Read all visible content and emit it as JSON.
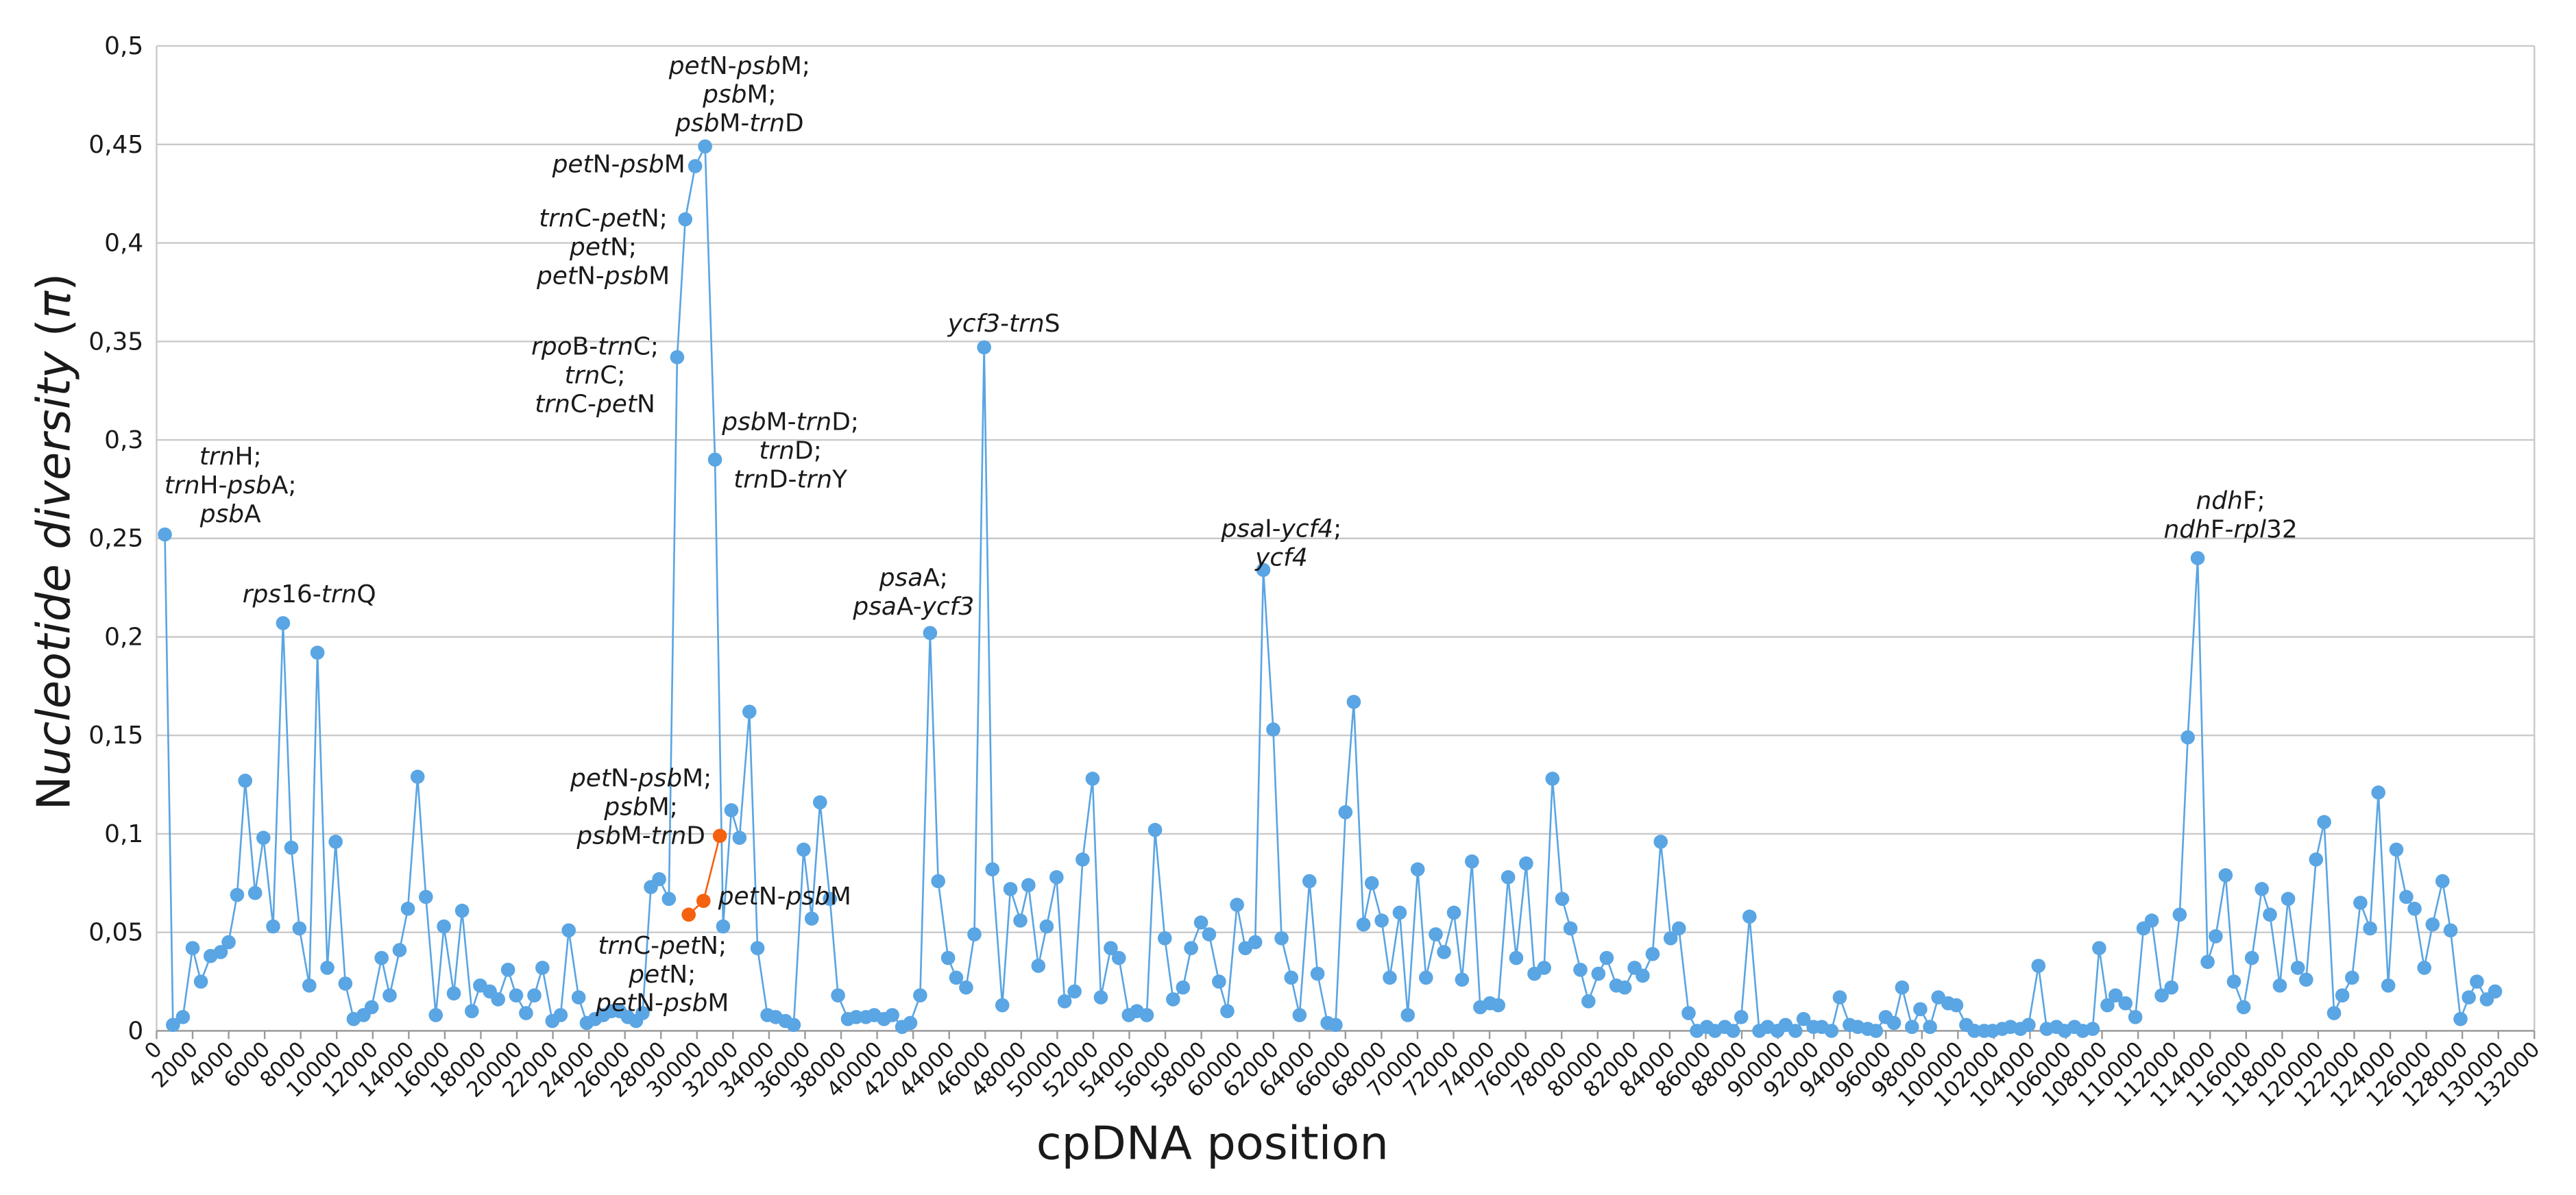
{
  "chart_data": {
    "type": "line",
    "x_label": "cpDNA position",
    "y_label": "Nucleotide diversity (π)",
    "xlim": [
      0,
      132000
    ],
    "xticks": [
      0,
      2000,
      4000,
      6000,
      8000,
      10000,
      12000,
      14000,
      16000,
      18000,
      20000,
      22000,
      24000,
      26000,
      28000,
      30000,
      32000,
      34000,
      36000,
      38000,
      40000,
      42000,
      44000,
      46000,
      48000,
      50000,
      52000,
      54000,
      56000,
      58000,
      60000,
      62000,
      64000,
      66000,
      68000,
      70000,
      72000,
      74000,
      76000,
      78000,
      80000,
      82000,
      84000,
      86000,
      88000,
      90000,
      92000,
      94000,
      96000,
      98000,
      100000,
      102000,
      104000,
      106000,
      108000,
      110000,
      112000,
      114000,
      116000,
      118000,
      120000,
      122000,
      124000,
      126000,
      128000,
      130000,
      132000
    ],
    "ylim": [
      0,
      0.5
    ],
    "yticks": [
      0,
      {
        "value": 0.05,
        "label": "0,05"
      },
      {
        "value": 0.1,
        "label": "0,1"
      },
      {
        "value": 0.15,
        "label": "0,15"
      },
      {
        "value": 0.2,
        "label": "0,2"
      },
      {
        "value": 0.25,
        "label": "0,25"
      },
      {
        "value": 0.3,
        "label": "0,3"
      },
      {
        "value": 0.35,
        "label": "0,35"
      },
      {
        "value": 0.4,
        "label": "0,4"
      },
      {
        "value": 0.45,
        "label": "0,45"
      },
      {
        "value": 0.5,
        "label": "0,5"
      }
    ],
    "grid": true,
    "series": [
      {
        "color": "#5aa5e3",
        "x": [
          460,
          910,
          1460,
          2000,
          2460,
          3000,
          3560,
          4000,
          4470,
          4920,
          5470,
          5930,
          6470,
          7020,
          7480,
          7930,
          8480,
          8930,
          9480,
          9940,
          10480,
          10940,
          11490,
          11940,
          12490,
          12940,
          13490,
          13950,
          14490,
          14950,
          15500,
          15950,
          16500,
          16960,
          17500,
          17960,
          18500,
          18960,
          19510,
          19960,
          20510,
          20970,
          21420,
          21970,
          22430,
          22880,
          23430,
          23880,
          24340,
          24800,
          25250,
          25710,
          26160,
          26620,
          26980,
          27440,
          27900,
          28440,
          28900,
          29350,
          29900,
          30450,
          31000,
          31450,
          31910,
          32360,
          32910,
          33360,
          33910,
          34370,
          34910,
          35370,
          35920,
          36370,
          36830,
          37380,
          37830,
          38380,
          38840,
          39380,
          39840,
          40380,
          40840,
          41390,
          41840,
          42390,
          42940,
          43390,
          43940,
          44390,
          44940,
          45400,
          45940,
          46400,
          46950,
          47400,
          47950,
          48400,
          48950,
          49410,
          49960,
          50410,
          50960,
          51410,
          51960,
          52420,
          52970,
          53420,
          53970,
          54420,
          54970,
          55430,
          55970,
          56430,
          56980,
          57430,
          57980,
          58430,
          58980,
          59440,
          59980,
          60440,
          60990,
          61440,
          61990,
          62450,
          62990,
          63450,
          64000,
          64450,
          65000,
          65450,
          66000,
          66460,
          67000,
          67460,
          68010,
          68460,
          69010,
          69460,
          70010,
          70470,
          71010,
          71470,
          72020,
          72470,
          73020,
          73480,
          74020,
          74480,
          75030,
          75480,
          76030,
          76490,
          77030,
          77490,
          78030,
          78490,
          79040,
          79490,
          80040,
          80500,
          81040,
          81500,
          82050,
          82500,
          83050,
          83500,
          84050,
          84510,
          85050,
          85510,
          86060,
          86510,
          87060,
          87520,
          87970,
          88430,
          88970,
          89430,
          89980,
          90430,
          90980,
          91430,
          91980,
          92440,
          92980,
          93440,
          93990,
          94440,
          94990,
          95450,
          95990,
          96450,
          96900,
          97450,
          97910,
          98450,
          98910,
          99460,
          99910,
          100460,
          100910,
          101460,
          101920,
          102460,
          102920,
          103470,
          103920,
          104470,
          104930,
          105470,
          105930,
          106470,
          106930,
          107480,
          107840,
          108300,
          108750,
          109300,
          109850,
          110300,
          110760,
          111310,
          111850,
          112310,
          112760,
          113310,
          113860,
          114310,
          114860,
          115320,
          115860,
          116320,
          116870,
          117320,
          117870,
          118330,
          118870,
          119330,
          119880,
          120330,
          120880,
          121340,
          121880,
          122340,
          122880,
          123340,
          123890,
          124340,
          124890,
          125350,
          125890,
          126350,
          126900,
          127350,
          127900,
          128360,
          128810,
          129360,
          129820
        ],
        "values": [
          0.252,
          0.003,
          0.007,
          0.042,
          0.025,
          0.038,
          0.04,
          0.045,
          0.069,
          0.127,
          0.07,
          0.098,
          0.053,
          0.207,
          0.093,
          0.052,
          0.023,
          0.192,
          0.032,
          0.096,
          0.024,
          0.006,
          0.008,
          0.012,
          0.037,
          0.018,
          0.041,
          0.062,
          0.129,
          0.068,
          0.008,
          0.053,
          0.019,
          0.061,
          0.01,
          0.023,
          0.02,
          0.016,
          0.031,
          0.018,
          0.009,
          0.018,
          0.032,
          0.005,
          0.008,
          0.051,
          0.017,
          0.004,
          0.006,
          0.008,
          0.01,
          0.01,
          0.007,
          0.005,
          0.009,
          0.073,
          0.077,
          0.067,
          0.342,
          0.412,
          0.439,
          0.449,
          0.29,
          0.053,
          0.112,
          0.098,
          0.162,
          0.042,
          0.008,
          0.007,
          0.005,
          0.003,
          0.092,
          0.057,
          0.116,
          0.067,
          0.018,
          0.006,
          0.007,
          0.007,
          0.008,
          0.006,
          0.008,
          0.002,
          0.004,
          0.018,
          0.202,
          0.076,
          0.037,
          0.027,
          0.022,
          0.049,
          0.347,
          0.082,
          0.013,
          0.072,
          0.056,
          0.074,
          0.033,
          0.053,
          0.078,
          0.015,
          0.02,
          0.087,
          0.128,
          0.017,
          0.042,
          0.037,
          0.008,
          0.01,
          0.008,
          0.102,
          0.047,
          0.016,
          0.022,
          0.042,
          0.055,
          0.049,
          0.025,
          0.01,
          0.064,
          0.042,
          0.045,
          0.234,
          0.153,
          0.047,
          0.027,
          0.008,
          0.076,
          0.029,
          0.004,
          0.003,
          0.111,
          0.167,
          0.054,
          0.075,
          0.056,
          0.027,
          0.06,
          0.008,
          0.082,
          0.027,
          0.049,
          0.04,
          0.06,
          0.026,
          0.086,
          0.012,
          0.014,
          0.013,
          0.078,
          0.037,
          0.085,
          0.029,
          0.032,
          0.128,
          0.067,
          0.052,
          0.031,
          0.015,
          0.029,
          0.037,
          0.023,
          0.022,
          0.032,
          0.028,
          0.039,
          0.096,
          0.047,
          0.052,
          0.009,
          0,
          0.002,
          0,
          0.002,
          0,
          0.007,
          0.058,
          0,
          0.002,
          0,
          0.003,
          0,
          0.006,
          0.002,
          0.002,
          0,
          0.017,
          0.003,
          0.002,
          0.001,
          0,
          0.007,
          0.004,
          0.022,
          0.002,
          0.011,
          0.002,
          0.017,
          0.014,
          0.013,
          0.003,
          0,
          0,
          0,
          0.001,
          0.002,
          0.001,
          0.003,
          0.033,
          0.001,
          0.002,
          0,
          0.002,
          0,
          0.001,
          0.042,
          0.013,
          0.018,
          0.014,
          0.007,
          0.052,
          0.056,
          0.018,
          0.022,
          0.059,
          0.149,
          0.24,
          0.035,
          0.048,
          0.079,
          0.025,
          0.012,
          0.037,
          0.072,
          0.059,
          0.023,
          0.067,
          0.032,
          0.026,
          0.087,
          0.106,
          0.009,
          0.018,
          0.027,
          0.065,
          0.052,
          0.121,
          0.023,
          0.092,
          0.068,
          0.062,
          0.032,
          0.054,
          0.076,
          0.051,
          0.006,
          0.017,
          0.025,
          0.016,
          0.02
        ]
      },
      {
        "color": "#f5620f",
        "x": [
          29540,
          30360,
          31270
        ],
        "values": [
          0.059,
          0.066,
          0.099
        ]
      }
    ],
    "annotations": [
      [
        "trnH;",
        "trnH-psbA;",
        "psbA"
      ],
      [
        "rps16-trnQ"
      ],
      [
        "petN-psbM;",
        "psbM;",
        "psbM-trnD"
      ],
      [
        "petN-psbM"
      ],
      [
        "trnC-petN;",
        "petN;",
        "petN-psbM"
      ],
      [
        "rpoB-trnC;",
        "trnC;",
        "trnC-petN"
      ],
      [
        "psbM-trnD;",
        "trnD;",
        "trnD-trnY"
      ],
      [
        "ycf3-trnS"
      ],
      [
        "psaA;",
        "psaA-ycf3"
      ],
      [
        "psaI-ycf4;",
        "ycf4"
      ],
      [
        "ndhF;",
        "ndhF-rpl32"
      ],
      [
        "petN-psbM;",
        "psbM;",
        "psbM-trnD"
      ],
      [
        "petN-psbM"
      ],
      [
        "trnC-petN;",
        "petN;",
        "petN-psbM"
      ]
    ]
  }
}
